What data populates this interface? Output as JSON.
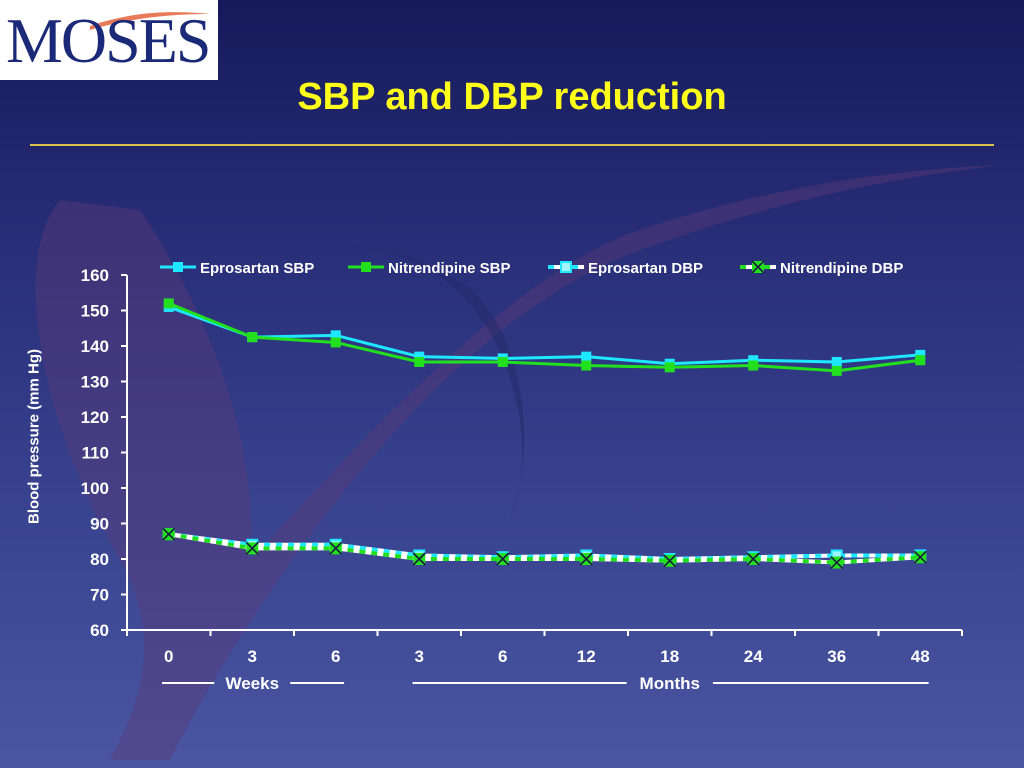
{
  "logo": {
    "text": "MOSES"
  },
  "slide": {
    "title": "SBP and DBP reduction"
  },
  "colors": {
    "eprosartan": "#1ee8ff",
    "nitrendipine": "#22e01e",
    "title": "#ffff1a"
  },
  "chart_data": {
    "type": "line",
    "ylabel": "Blood pressure (mm Hg)",
    "ylim": [
      60,
      160
    ],
    "yticks": [
      60,
      70,
      80,
      90,
      100,
      110,
      120,
      130,
      140,
      150,
      160
    ],
    "categories": [
      "0",
      "3",
      "6",
      "3",
      "6",
      "12",
      "18",
      "24",
      "36",
      "48"
    ],
    "groups": [
      {
        "label": "Weeks",
        "from": 0,
        "to": 2
      },
      {
        "label": "Months",
        "from": 3,
        "to": 9
      }
    ],
    "legend": {
      "placement": "top"
    },
    "series": [
      {
        "name": "Eprosartan SBP",
        "color": "#1ee8ff",
        "marker": "square",
        "dashed": false,
        "values": [
          151,
          142.5,
          143,
          137,
          136.5,
          137,
          135,
          136,
          135.5,
          137.5
        ]
      },
      {
        "name": "Nitrendipine SBP",
        "color": "#22e01e",
        "marker": "square",
        "dashed": false,
        "values": [
          152,
          142.5,
          141,
          135.5,
          135.5,
          134.5,
          134,
          134.5,
          133,
          136
        ]
      },
      {
        "name": "Eprosartan DBP",
        "color": "#1ee8ff",
        "marker": "square-open",
        "dashed": true,
        "values": [
          87,
          84,
          84,
          81,
          80.5,
          81,
          80,
          80.5,
          81,
          81
        ]
      },
      {
        "name": "Nitrendipine DBP",
        "color": "#22e01e",
        "marker": "x",
        "dashed": true,
        "values": [
          87,
          83,
          83,
          80,
          80,
          80,
          79.5,
          80,
          79,
          80.5
        ]
      }
    ]
  }
}
